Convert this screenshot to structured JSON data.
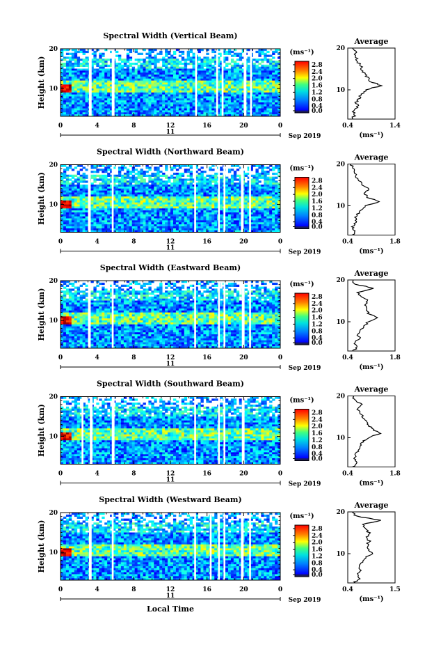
{
  "figure": {
    "xlabel": "Local Time",
    "date_label": "Sep 2019",
    "day_label": "11",
    "avg_title": "Average",
    "unit_label": "(ms⁻¹)",
    "avg_unit_label": "(ms⁻¹)"
  },
  "chart_data": [
    {
      "type": "heatmap",
      "title": "Spectral Width (Vertical Beam)",
      "ylabel": "Height (km)",
      "xlabel": "Local Time",
      "x_ticks": [
        "0",
        "4",
        "8",
        "12",
        "16",
        "20",
        "0"
      ],
      "y_ticks": [
        "10",
        "20"
      ],
      "xlim": [
        0,
        24
      ],
      "ylim": [
        3,
        20
      ],
      "colorbar_ticks": [
        "0.0",
        "0.4",
        "0.8",
        "1.2",
        "1.6",
        "2.0",
        "2.4",
        "2.8"
      ],
      "colorbar_range": [
        0.0,
        3.0
      ],
      "data_gaps_hours": [
        [
          3.1,
          3.4
        ],
        [
          5.6,
          5.9
        ],
        [
          14.7,
          14.9
        ],
        [
          17.0,
          17.2
        ],
        [
          17.6,
          17.8
        ],
        [
          20.0,
          20.3
        ],
        [
          20.7,
          20.9
        ]
      ],
      "average_profile": {
        "title": "Average",
        "xlabel": "(ms⁻¹)",
        "x_ticks": [
          "0.4",
          "1.4"
        ],
        "xlim": [
          0.4,
          1.4
        ],
        "y_ticks": [
          "10",
          "20"
        ],
        "heights": [
          3,
          4,
          5,
          6,
          7,
          8,
          9,
          10,
          11,
          12,
          13,
          14,
          15,
          16,
          17,
          18,
          19,
          20
        ],
        "values": [
          0.5,
          0.55,
          0.5,
          0.6,
          0.58,
          0.65,
          0.7,
          0.8,
          1.1,
          0.9,
          0.8,
          0.75,
          0.7,
          0.65,
          0.6,
          0.58,
          0.55,
          0.5
        ]
      }
    },
    {
      "type": "heatmap",
      "title": "Spectral Width (Northward Beam)",
      "ylabel": "Height (km)",
      "xlabel": "Local Time",
      "x_ticks": [
        "0",
        "4",
        "8",
        "12",
        "16",
        "20",
        "0"
      ],
      "y_ticks": [
        "10",
        "20"
      ],
      "xlim": [
        0,
        24
      ],
      "ylim": [
        3,
        20
      ],
      "colorbar_ticks": [
        "0.0",
        "0.4",
        "0.8",
        "1.2",
        "1.6",
        "2.0",
        "2.4",
        "2.8"
      ],
      "colorbar_range": [
        0.0,
        3.0
      ],
      "data_gaps_hours": [
        [
          3.0,
          3.3
        ],
        [
          5.6,
          5.8
        ],
        [
          14.6,
          14.8
        ],
        [
          17.2,
          17.4
        ],
        [
          17.8,
          18.0
        ],
        [
          19.7,
          20.0
        ],
        [
          20.6,
          20.8
        ]
      ],
      "average_profile": {
        "title": "Average",
        "xlabel": "(ms⁻¹)",
        "x_ticks": [
          "0.4",
          "1.8"
        ],
        "xlim": [
          0.4,
          1.8
        ],
        "y_ticks": [
          "10",
          "20"
        ],
        "heights": [
          3,
          4,
          5,
          6,
          7,
          8,
          9,
          10,
          11,
          12,
          13,
          14,
          15,
          16,
          17,
          18,
          19,
          20
        ],
        "values": [
          0.55,
          0.6,
          0.55,
          0.65,
          0.62,
          0.7,
          0.8,
          0.9,
          1.35,
          1.0,
          0.9,
          1.05,
          0.85,
          0.75,
          0.65,
          0.6,
          0.55,
          0.5
        ]
      }
    },
    {
      "type": "heatmap",
      "title": "Spectral Width (Eastward Beam)",
      "ylabel": "Height (km)",
      "xlabel": "Local Time",
      "x_ticks": [
        "0",
        "4",
        "8",
        "12",
        "16",
        "20",
        "0"
      ],
      "y_ticks": [
        "10",
        "20"
      ],
      "xlim": [
        0,
        24
      ],
      "ylim": [
        3,
        20
      ],
      "colorbar_ticks": [
        "0.0",
        "0.4",
        "0.8",
        "1.2",
        "1.6",
        "2.0",
        "2.4",
        "2.8"
      ],
      "colorbar_range": [
        0.0,
        3.0
      ],
      "data_gaps_hours": [
        [
          3.0,
          3.3
        ],
        [
          5.6,
          5.8
        ],
        [
          14.6,
          14.8
        ],
        [
          17.2,
          17.4
        ],
        [
          17.8,
          18.0
        ],
        [
          19.8,
          20.1
        ],
        [
          20.6,
          20.8
        ]
      ],
      "average_profile": {
        "title": "Average",
        "xlabel": "(ms⁻¹)",
        "x_ticks": [
          "0.4",
          "1.8"
        ],
        "xlim": [
          0.4,
          1.8
        ],
        "y_ticks": [
          "10",
          "20"
        ],
        "heights": [
          3,
          4,
          5,
          6,
          7,
          8,
          9,
          10,
          11,
          12,
          13,
          14,
          15,
          16,
          17,
          18,
          19,
          20
        ],
        "values": [
          0.55,
          0.7,
          0.6,
          0.75,
          0.7,
          0.8,
          0.9,
          1.0,
          1.3,
          1.0,
          0.95,
          0.9,
          1.0,
          0.8,
          0.7,
          1.2,
          0.6,
          0.55
        ]
      }
    },
    {
      "type": "heatmap",
      "title": "Spectral Width (Southward Beam)",
      "ylabel": "Height (km)",
      "xlabel": "Local Time",
      "x_ticks": [
        "0",
        "4",
        "8",
        "12",
        "16",
        "20",
        "0"
      ],
      "y_ticks": [
        "10",
        "20"
      ],
      "xlim": [
        0,
        24
      ],
      "ylim": [
        3,
        20
      ],
      "colorbar_ticks": [
        "0.0",
        "0.4",
        "0.8",
        "1.2",
        "1.6",
        "2.0",
        "2.4",
        "2.8"
      ],
      "colorbar_range": [
        0.0,
        3.0
      ],
      "data_gaps_hours": [
        [
          2.3,
          2.5
        ],
        [
          3.2,
          3.5
        ],
        [
          5.6,
          5.9
        ],
        [
          14.6,
          14.8
        ],
        [
          17.2,
          17.4
        ],
        [
          17.8,
          18.0
        ],
        [
          19.8,
          20.1
        ]
      ],
      "average_profile": {
        "title": "Average",
        "xlabel": "(ms⁻¹)",
        "x_ticks": [
          "0.4",
          "1.8"
        ],
        "xlim": [
          0.4,
          1.8
        ],
        "y_ticks": [
          "10",
          "20"
        ],
        "heights": [
          3,
          4,
          5,
          6,
          7,
          8,
          9,
          10,
          11,
          12,
          13,
          14,
          15,
          16,
          17,
          18,
          19,
          20
        ],
        "values": [
          0.55,
          0.7,
          0.6,
          0.65,
          0.7,
          0.75,
          0.85,
          1.0,
          1.35,
          1.15,
          1.0,
          0.95,
          0.85,
          0.75,
          0.7,
          0.8,
          0.6,
          0.55
        ]
      }
    },
    {
      "type": "heatmap",
      "title": "Spectral Width (Westward Beam)",
      "ylabel": "Height (km)",
      "xlabel": "Local Time",
      "x_ticks": [
        "0",
        "4",
        "8",
        "12",
        "16",
        "20",
        "0"
      ],
      "y_ticks": [
        "10",
        "20"
      ],
      "xlim": [
        0,
        24
      ],
      "ylim": [
        3,
        20
      ],
      "colorbar_ticks": [
        "0.0",
        "0.4",
        "0.8",
        "1.2",
        "1.6",
        "2.0",
        "2.4",
        "2.8"
      ],
      "colorbar_range": [
        0.0,
        3.0
      ],
      "data_gaps_hours": [
        [
          3.1,
          3.4
        ],
        [
          5.6,
          5.8
        ],
        [
          14.6,
          14.8
        ],
        [
          16.3,
          16.5
        ],
        [
          17.2,
          17.4
        ],
        [
          17.8,
          18.0
        ],
        [
          19.7,
          20.0
        ],
        [
          20.6,
          20.8
        ]
      ],
      "average_profile": {
        "title": "Average",
        "xlabel": "(ms⁻¹)",
        "x_ticks": [
          "0.4",
          "1.5"
        ],
        "xlim": [
          0.4,
          1.5
        ],
        "y_ticks": [
          "10",
          "20"
        ],
        "heights": [
          3,
          4,
          5,
          6,
          7,
          8,
          9,
          10,
          11,
          12,
          13,
          14,
          15,
          16,
          17,
          18,
          19,
          20
        ],
        "values": [
          0.55,
          0.65,
          0.6,
          0.7,
          0.65,
          0.75,
          0.8,
          0.95,
          0.9,
          0.85,
          0.9,
          0.85,
          0.9,
          0.8,
          0.75,
          1.15,
          0.6,
          0.5
        ]
      }
    }
  ]
}
